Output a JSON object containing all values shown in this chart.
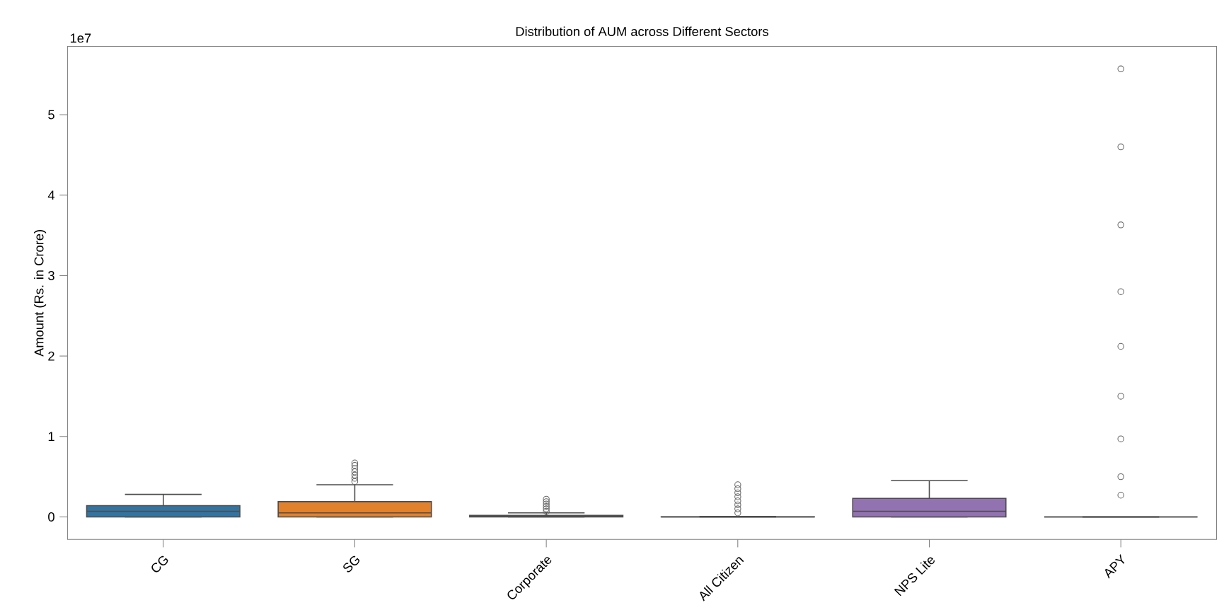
{
  "chart_data": {
    "type": "box",
    "title": "Distribution of AUM across Different Sectors",
    "ylabel": "Amount (Rs. in Crore)",
    "annotations": [
      "1e7"
    ],
    "categories": [
      "CG",
      "SG",
      "Corporate",
      "All Citizen",
      "NPS Lite",
      "APY"
    ],
    "colors": [
      "#3274a1",
      "#e1812c",
      "#3a923a",
      "#c03d3e",
      "#9372b2",
      "#4c4c4c"
    ],
    "boxes": [
      {
        "low": 0,
        "q1": 0,
        "median": 0.07,
        "q3": 0.14,
        "high": 0.28
      },
      {
        "low": 0,
        "q1": 0,
        "median": 0.05,
        "q3": 0.19,
        "high": 0.4,
        "outliers": [
          0.44,
          0.48,
          0.52,
          0.56,
          0.6,
          0.64,
          0.67
        ]
      },
      {
        "low": 0,
        "q1": 0,
        "median": 0.005,
        "q3": 0.02,
        "high": 0.05,
        "outliers": [
          0.07,
          0.1,
          0.13,
          0.16,
          0.19,
          0.22
        ]
      },
      {
        "low": 0,
        "q1": 0,
        "median": 0,
        "q3": 0.002,
        "high": 0.005,
        "outliers": [
          0.05,
          0.1,
          0.15,
          0.2,
          0.25,
          0.3,
          0.35,
          0.4
        ]
      },
      {
        "low": 0,
        "q1": 0,
        "median": 0.07,
        "q3": 0.23,
        "high": 0.45
      },
      {
        "low": 0,
        "q1": 0,
        "median": 0,
        "q3": 0,
        "high": 0,
        "outliers": [
          0.27,
          0.5,
          0.97,
          1.5,
          2.12,
          2.8,
          3.63,
          4.6,
          5.57
        ]
      }
    ],
    "ylim": [
      -0.28,
      5.85
    ],
    "yticks": [
      0,
      1,
      2,
      3,
      4,
      5
    ],
    "grid": false,
    "marker": "circle"
  }
}
